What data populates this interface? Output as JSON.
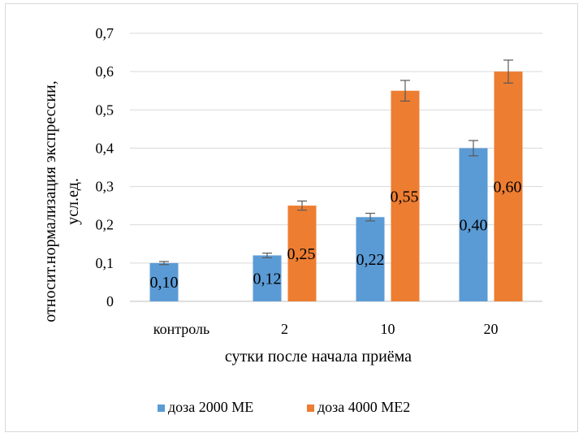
{
  "chart_data": {
    "type": "bar",
    "title": "",
    "xlabel": "сутки после начала приёма",
    "ylabel_line1": "относит.нормализация экспрессии,",
    "ylabel_line2": "усл.ед.",
    "ylim": [
      0,
      0.7
    ],
    "y_ticks": [
      "0",
      "0,1",
      "0,2",
      "0,3",
      "0,4",
      "0,5",
      "0,6",
      "0,7"
    ],
    "grid": true,
    "legend_position": "bottom",
    "categories": [
      "контроль",
      "2",
      "10",
      "20"
    ],
    "series": [
      {
        "name": "доза 2000 МЕ",
        "color": "#5b9bd5",
        "values": [
          0.1,
          0.12,
          0.22,
          0.4
        ],
        "errors": [
          0.004,
          0.006,
          0.01,
          0.02
        ],
        "labels": [
          "0,10",
          "0,12",
          "0,22",
          "0,40"
        ]
      },
      {
        "name": "доза 4000 МЕ2",
        "color": "#ed7d31",
        "values": [
          null,
          0.25,
          0.55,
          0.6
        ],
        "errors": [
          null,
          0.012,
          0.027,
          0.03
        ],
        "labels": [
          "",
          "0,25",
          "0,55",
          "0,60"
        ]
      }
    ]
  }
}
